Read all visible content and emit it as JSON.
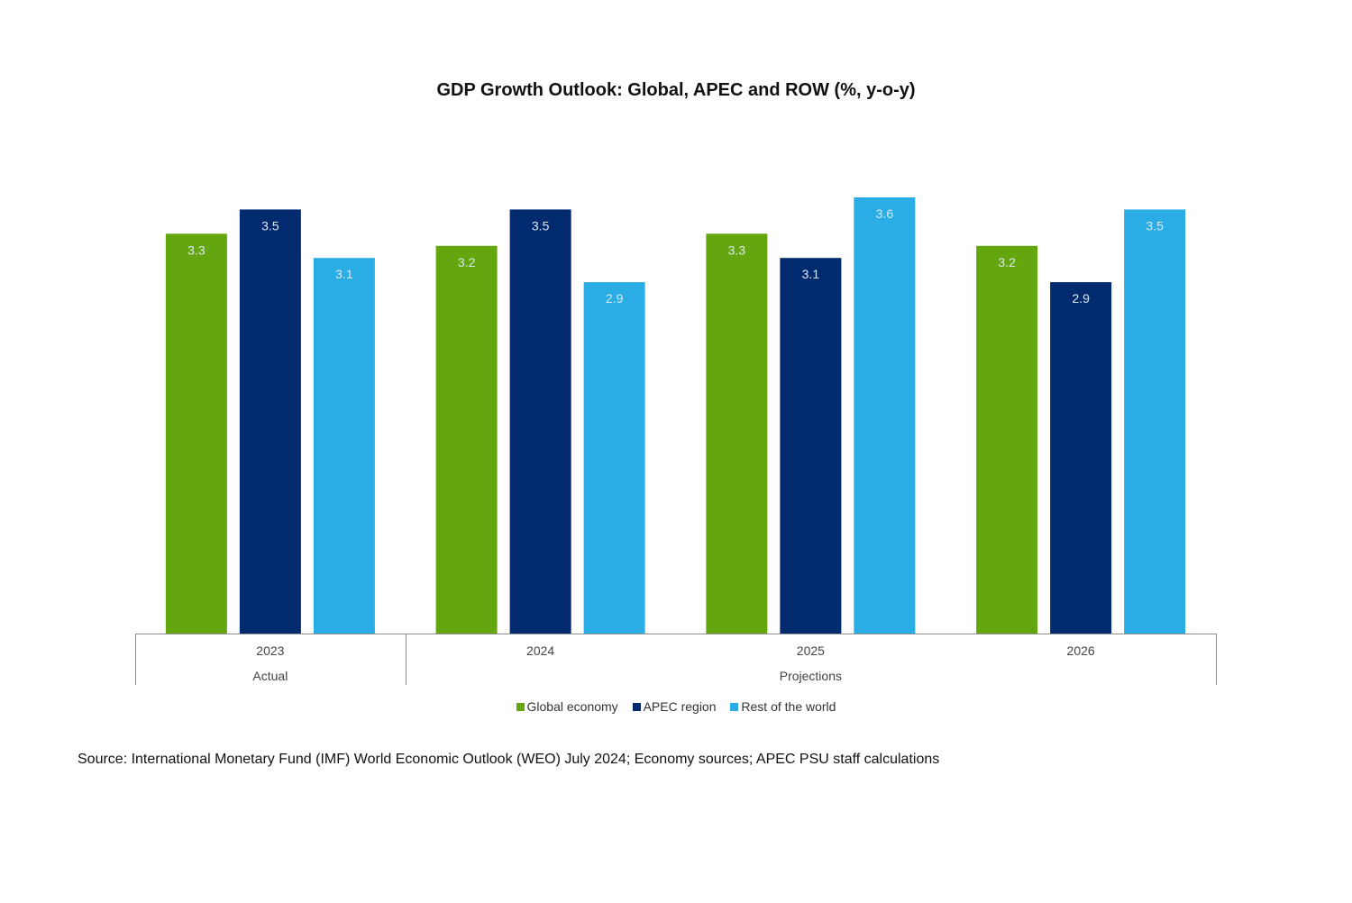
{
  "chart_data": {
    "type": "bar",
    "title": "GDP Growth Outlook: Global, APEC and ROW (%, y-o-y)",
    "categories": [
      "2023",
      "2024",
      "2025",
      "2026"
    ],
    "groups": [
      {
        "label": "Actual",
        "categories": [
          "2023"
        ]
      },
      {
        "label": "Projections",
        "categories": [
          "2024",
          "2025",
          "2026"
        ]
      }
    ],
    "series": [
      {
        "name": "Global economy",
        "color": "#64a610",
        "values": [
          3.3,
          3.2,
          3.3,
          3.2
        ]
      },
      {
        "name": "APEC region",
        "color": "#022a6e",
        "values": [
          3.5,
          3.5,
          3.1,
          2.9
        ]
      },
      {
        "name": "Rest of the world",
        "color": "#2aace4",
        "values": [
          3.1,
          2.9,
          3.6,
          3.5
        ]
      }
    ],
    "data_labels": true,
    "ylim": [
      0,
      3.6
    ],
    "grid": false,
    "legend_position": "bottom"
  },
  "source_note": "Source: International Monetary Fund (IMF) World Economic Outlook (WEO) July 2024; Economy sources; APEC PSU staff calculations"
}
